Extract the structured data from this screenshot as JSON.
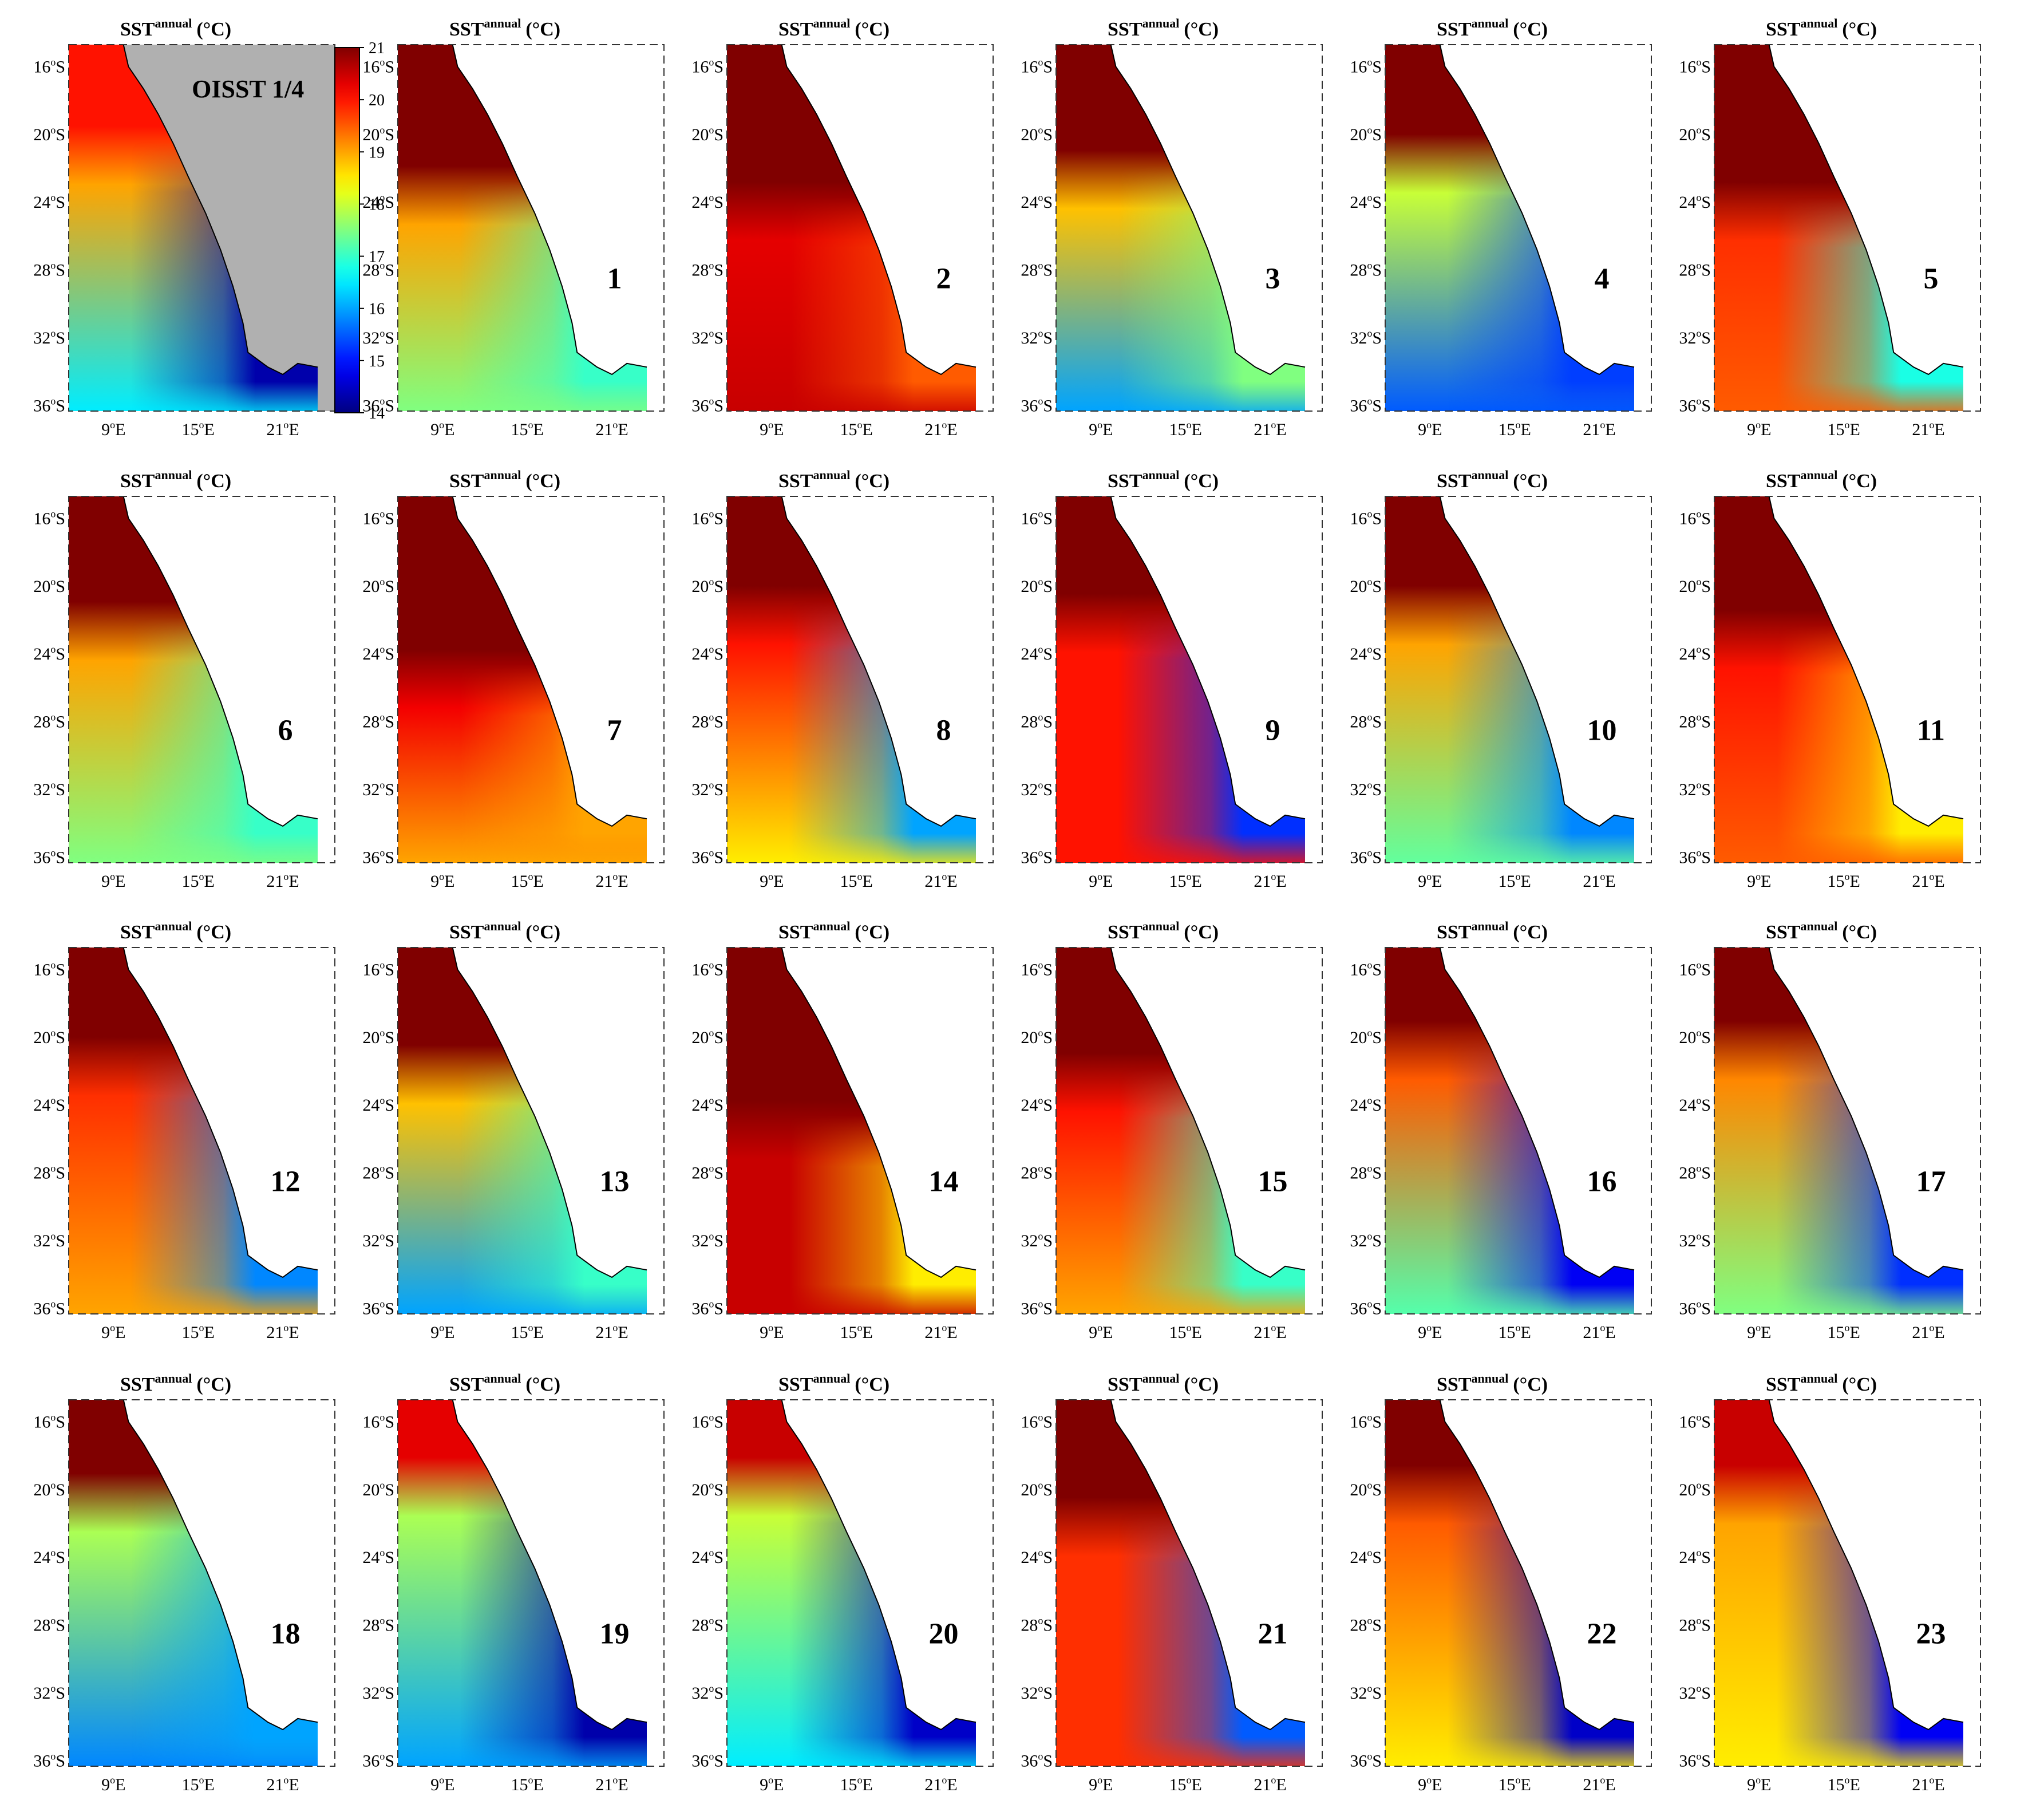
{
  "figure": {
    "title_main": "SST",
    "title_sup": "annual",
    "title_unit": "(°C)",
    "lat_ticks": [
      "16°S",
      "20°S",
      "24°S",
      "28°S",
      "32°S",
      "36°S"
    ],
    "lon_ticks": [
      "9°E",
      "15°E",
      "21°E"
    ]
  },
  "colorbar": {
    "ticks": [
      "21",
      "20",
      "19",
      "18",
      "17",
      "16",
      "15",
      "14"
    ],
    "min": 14,
    "max": 21,
    "colormap": "jet"
  },
  "chart_data": {
    "type": "heatmap",
    "description_source": "grid of annual-mean SST maps of the Benguela region",
    "variable": "SST annual (°C)",
    "colorbar_range": [
      14,
      21
    ],
    "lat_range": [
      -37,
      -14
    ],
    "lon_range": [
      5,
      22
    ],
    "panels": [
      {
        "label": "OISST 1/4",
        "north": 20.0,
        "offshore": 19.0,
        "south": 16.5,
        "coast_min": 14.3,
        "front_lat": -20.5,
        "land": "gray"
      },
      {
        "label": "1",
        "north": 21.0,
        "offshore": 19.0,
        "south": 17.5,
        "coast_min": 17.0,
        "front_lat": -23.0
      },
      {
        "label": "2",
        "north": 21.0,
        "offshore": 20.3,
        "south": 20.5,
        "coast_min": 19.5,
        "front_lat": -24.0
      },
      {
        "label": "3",
        "north": 21.0,
        "offshore": 18.8,
        "south": 16.0,
        "coast_min": 17.5,
        "front_lat": -22.0
      },
      {
        "label": "4",
        "north": 21.0,
        "offshore": 18.0,
        "south": 15.5,
        "coast_min": 15.3,
        "front_lat": -21.0
      },
      {
        "label": "5",
        "north": 21.0,
        "offshore": 19.8,
        "south": 19.5,
        "coast_min": 16.8,
        "front_lat": -24.0
      },
      {
        "label": "6",
        "north": 21.0,
        "offshore": 19.0,
        "south": 17.5,
        "coast_min": 17.0,
        "front_lat": -22.0
      },
      {
        "label": "7",
        "north": 21.0,
        "offshore": 20.2,
        "south": 19.0,
        "coast_min": 19.0,
        "front_lat": -25.0
      },
      {
        "label": "8",
        "north": 21.0,
        "offshore": 20.0,
        "south": 18.5,
        "coast_min": 16.0,
        "front_lat": -21.0
      },
      {
        "label": "9",
        "north": 21.0,
        "offshore": 20.0,
        "south": 20.0,
        "coast_min": 15.2,
        "front_lat": -21.5
      },
      {
        "label": "10",
        "north": 21.0,
        "offshore": 19.0,
        "south": 17.3,
        "coast_min": 15.8,
        "front_lat": -21.0
      },
      {
        "label": "11",
        "north": 21.0,
        "offshore": 20.0,
        "south": 19.5,
        "coast_min": 18.5,
        "front_lat": -22.5
      },
      {
        "label": "12",
        "north": 21.0,
        "offshore": 19.8,
        "south": 19.0,
        "coast_min": 15.8,
        "front_lat": -21.0
      },
      {
        "label": "13",
        "north": 21.0,
        "offshore": 18.8,
        "south": 16.0,
        "coast_min": 17.0,
        "front_lat": -21.5
      },
      {
        "label": "14",
        "north": 21.0,
        "offshore": 20.5,
        "south": 20.5,
        "coast_min": 18.5,
        "front_lat": -25.0
      },
      {
        "label": "15",
        "north": 21.0,
        "offshore": 20.0,
        "south": 19.0,
        "coast_min": 17.0,
        "front_lat": -22.0
      },
      {
        "label": "16",
        "north": 21.0,
        "offshore": 19.5,
        "south": 17.2,
        "coast_min": 14.8,
        "front_lat": -20.0
      },
      {
        "label": "17",
        "north": 21.0,
        "offshore": 19.2,
        "south": 17.5,
        "coast_min": 15.2,
        "front_lat": -20.0
      },
      {
        "label": "18",
        "north": 21.0,
        "offshore": 17.8,
        "south": 15.8,
        "coast_min": 16.0,
        "front_lat": -20.0
      },
      {
        "label": "19",
        "north": 20.3,
        "offshore": 17.8,
        "south": 16.0,
        "coast_min": 14.3,
        "front_lat": -19.0
      },
      {
        "label": "20",
        "north": 20.5,
        "offshore": 18.0,
        "south": 16.5,
        "coast_min": 14.5,
        "front_lat": -19.0
      },
      {
        "label": "21",
        "north": 21.0,
        "offshore": 19.8,
        "south": 19.8,
        "coast_min": 15.5,
        "front_lat": -21.5
      },
      {
        "label": "22",
        "north": 21.0,
        "offshore": 19.5,
        "south": 18.5,
        "coast_min": 14.5,
        "front_lat": -19.5
      },
      {
        "label": "23",
        "north": 20.5,
        "offshore": 19.0,
        "south": 18.5,
        "coast_min": 14.8,
        "front_lat": -19.5
      }
    ]
  }
}
